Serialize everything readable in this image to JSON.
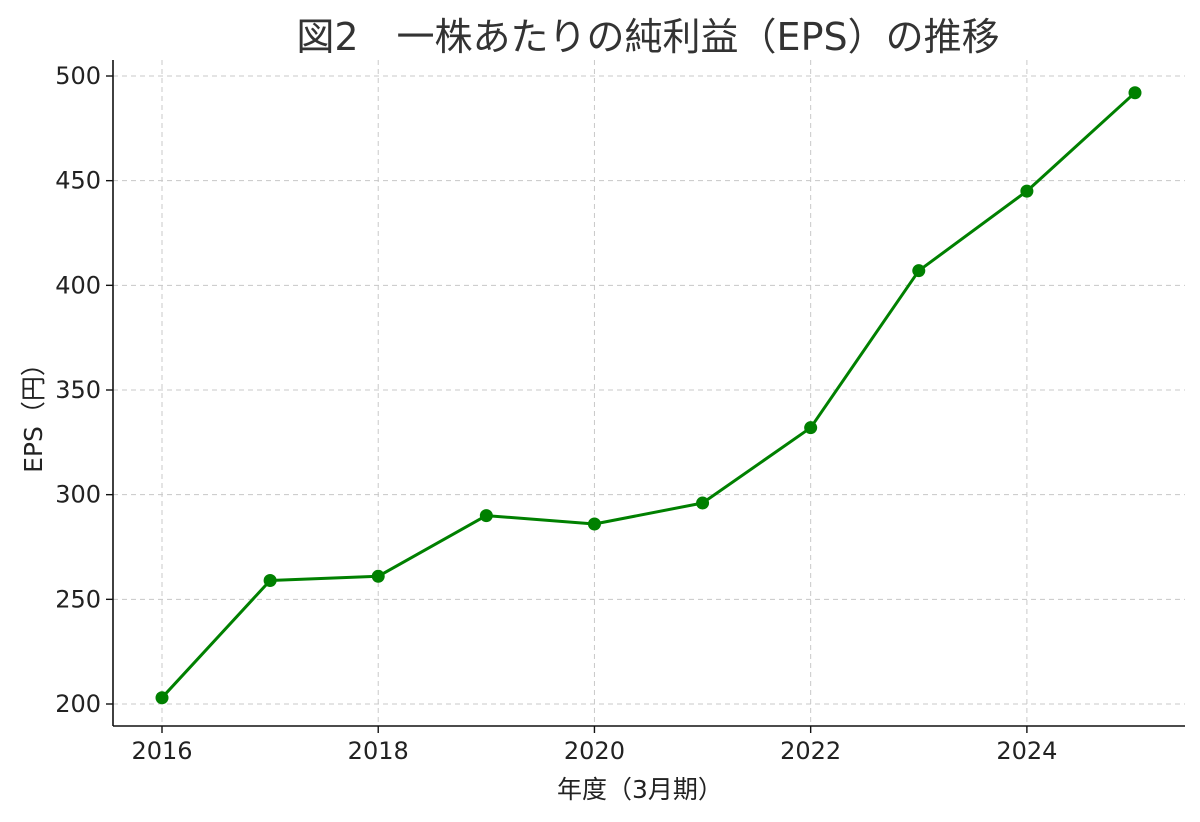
{
  "chart_data": {
    "type": "line",
    "title": "図2　一株あたりの純利益（EPS）の推移",
    "xlabel": "年度（3月期）",
    "ylabel": "EPS（円）",
    "x": [
      2016,
      2017,
      2018,
      2019,
      2020,
      2021,
      2022,
      2023,
      2024,
      2025
    ],
    "series": [
      {
        "values": [
          203,
          259,
          261,
          290,
          286,
          296,
          332,
          407,
          445,
          492
        ],
        "color": "#008000",
        "marker": "circle"
      }
    ],
    "xlim": [
      2016,
      2025
    ],
    "ylim": [
      200,
      500
    ],
    "xticks": [
      2016,
      2018,
      2020,
      2022,
      2024
    ],
    "xtick_labels": [
      "2016",
      "2018",
      "2020",
      "2022",
      "2024"
    ],
    "yticks": [
      200,
      250,
      300,
      350,
      400,
      450,
      500
    ],
    "ytick_labels": [
      "200",
      "250",
      "300",
      "350",
      "400",
      "450",
      "500"
    ],
    "grid": true,
    "legend": "none"
  }
}
